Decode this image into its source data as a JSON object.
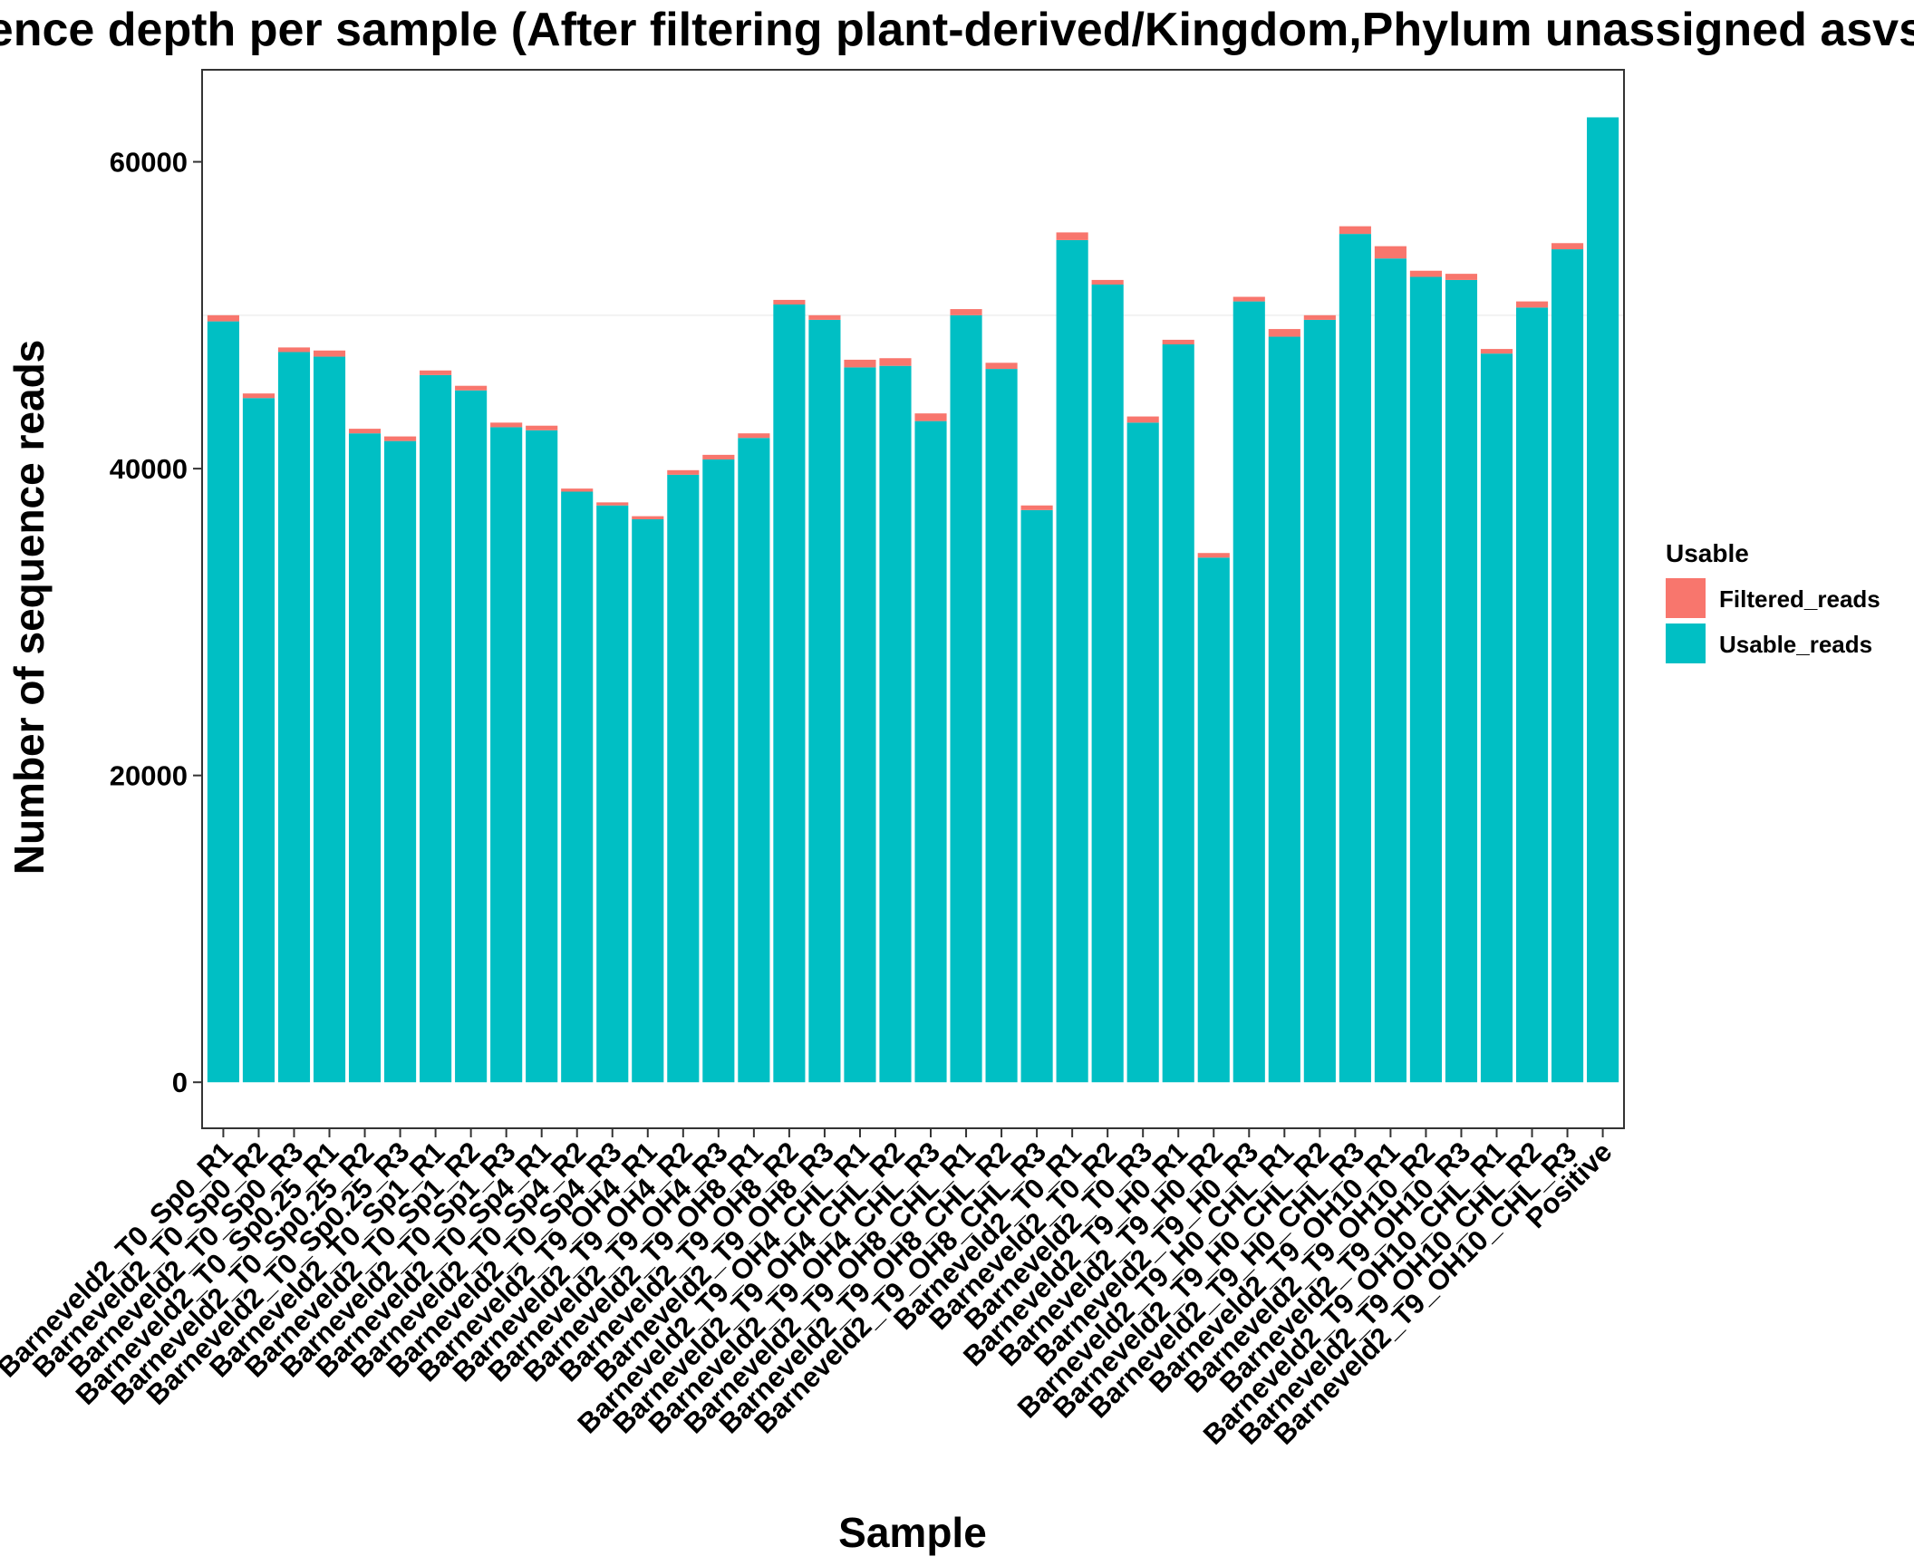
{
  "chart_data": {
    "type": "bar",
    "stacked": true,
    "title": "Sequence depth per sample (After filtering plant-derived/Kingdom,Phylum unassigned asvs)",
    "xlabel": "Sample",
    "ylabel": "Number of sequence reads",
    "ylim": [
      -3000,
      66000
    ],
    "yticks": [
      0,
      20000,
      40000,
      60000
    ],
    "ytick_labels": [
      "0",
      "20000",
      "40000",
      "60000"
    ],
    "grid": false,
    "legend": {
      "title": "Usable",
      "position": "right",
      "entries": [
        "Filtered_reads",
        "Usable_reads"
      ]
    },
    "categories": [
      "Barneveld2_T0_Sp0_R1",
      "Barneveld2_T0_Sp0_R2",
      "Barneveld2_T0_Sp0_R3",
      "Barneveld2_T0_Sp0.25_R1",
      "Barneveld2_T0_Sp0.25_R2",
      "Barneveld2_T0_Sp0.25_R3",
      "Barneveld2_T0_Sp1_R1",
      "Barneveld2_T0_Sp1_R2",
      "Barneveld2_T0_Sp1_R3",
      "Barneveld2_T0_Sp4_R1",
      "Barneveld2_T0_Sp4_R2",
      "Barneveld2_T0_Sp4_R3",
      "Barneveld2_T9_OH4_R1",
      "Barneveld2_T9_OH4_R2",
      "Barneveld2_T9_OH4_R3",
      "Barneveld2_T9_OH8_R1",
      "Barneveld2_T9_OH8_R2",
      "Barneveld2_T9_OH8_R3",
      "Barneveld2_T9_OH4_CHL_R1",
      "Barneveld2_T9_OH4_CHL_R2",
      "Barneveld2_T9_OH4_CHL_R3",
      "Barneveld2_T9_OH8_CHL_R1",
      "Barneveld2_T9_OH8_CHL_R2",
      "Barneveld2_T9_OH8_CHL_R3",
      "Barneveld2_T0_R1",
      "Barneveld2_T0_R2",
      "Barneveld2_T0_R3",
      "Barneveld2_T9_H0_R1",
      "Barneveld2_T9_H0_R2",
      "Barneveld2_T9_H0_R3",
      "Barneveld2_T9_H0_CHL_R1",
      "Barneveld2_T9_H0_CHL_R2",
      "Barneveld2_T9_H0_CHL_R3",
      "Barneveld2_T9_OH10_R1",
      "Barneveld2_T9_OH10_R2",
      "Barneveld2_T9_OH10_R3",
      "Barneveld2_T9_OH10_CHL_R1",
      "Barneveld2_T9_OH10_CHL_R2",
      "Barneveld2_T9_OH10_CHL_R3",
      "Positive"
    ],
    "series": [
      {
        "name": "Usable_reads",
        "color": "#00BFC4",
        "values": [
          49600,
          44600,
          47600,
          47300,
          42300,
          41800,
          46100,
          45100,
          42700,
          42500,
          38500,
          37600,
          36700,
          39600,
          40600,
          42000,
          50700,
          49700,
          46600,
          46700,
          43100,
          50000,
          46500,
          37300,
          54900,
          52000,
          43000,
          48100,
          34200,
          50900,
          48600,
          49700,
          55300,
          53700,
          52500,
          52300,
          47500,
          50500,
          54300,
          62900
        ]
      },
      {
        "name": "Filtered_reads",
        "color": "#F8766D",
        "values": [
          400,
          300,
          300,
          400,
          300,
          300,
          300,
          300,
          300,
          300,
          200,
          200,
          200,
          300,
          300,
          300,
          300,
          300,
          500,
          500,
          500,
          400,
          400,
          300,
          500,
          300,
          400,
          300,
          300,
          300,
          500,
          300,
          500,
          800,
          400,
          400,
          300,
          400,
          400,
          0
        ]
      }
    ]
  }
}
